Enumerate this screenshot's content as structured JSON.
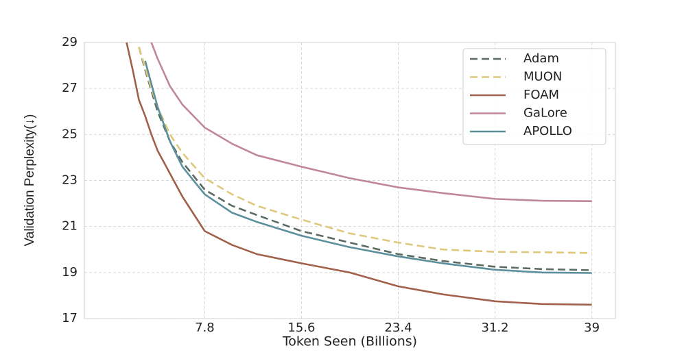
{
  "chart_data": {
    "type": "line",
    "x_label": "Token Seen (Billions)",
    "y_label": "Validation Perplexity(↓)",
    "x": [
      1.5,
      2,
      2.5,
      3,
      3.5,
      4,
      5,
      6,
      7.8,
      10,
      12,
      15.6,
      19.5,
      23.4,
      27,
      31.2,
      35,
      39
    ],
    "series": [
      {
        "name": "Adam",
        "color": "#5b6b60",
        "linestyle": "dashed",
        "values": [
          null,
          null,
          28.8,
          27.8,
          26.9,
          26.0,
          24.7,
          23.8,
          22.6,
          21.9,
          21.5,
          20.8,
          20.3,
          19.8,
          19.5,
          19.25,
          19.15,
          19.1
        ]
      },
      {
        "name": "MUON",
        "color": "#dfc87c",
        "linestyle": "dashed",
        "values": [
          null,
          null,
          28.8,
          27.9,
          27.0,
          26.2,
          25.0,
          24.2,
          23.1,
          22.4,
          21.9,
          21.3,
          20.7,
          20.3,
          20.0,
          19.9,
          19.88,
          19.85
        ]
      },
      {
        "name": "FOAM",
        "color": "#a0604a",
        "linestyle": "solid",
        "values": [
          29,
          27.8,
          26.5,
          25.8,
          25.0,
          24.3,
          23.3,
          22.3,
          20.8,
          20.2,
          19.8,
          19.4,
          19.0,
          18.4,
          18.05,
          17.75,
          17.63,
          17.6
        ]
      },
      {
        "name": "GaLore",
        "color": "#c0869a",
        "linestyle": "solid",
        "values": [
          null,
          null,
          null,
          null,
          29,
          28.3,
          27.1,
          26.3,
          25.3,
          24.6,
          24.1,
          23.6,
          23.1,
          22.7,
          22.45,
          22.2,
          22.12,
          22.1
        ]
      },
      {
        "name": "APOLLO",
        "color": "#5a8f9b",
        "linestyle": "solid",
        "values": [
          null,
          null,
          null,
          28.2,
          27.2,
          26.2,
          24.7,
          23.6,
          22.4,
          21.6,
          21.2,
          20.6,
          20.1,
          19.7,
          19.4,
          19.12,
          19.0,
          18.98
        ]
      }
    ],
    "xlim": [
      -1.9,
      40.9
    ],
    "ylim": [
      17,
      29
    ],
    "xticks": [
      7.8,
      15.6,
      23.4,
      31.2,
      39
    ],
    "yticks": [
      17,
      19,
      21,
      23,
      25,
      27,
      29
    ],
    "grid": true,
    "legend": "top-right"
  }
}
